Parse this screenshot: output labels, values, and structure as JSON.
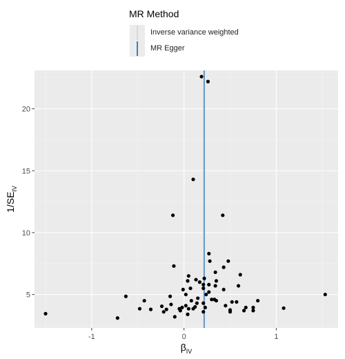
{
  "legend": {
    "title": "MR Method",
    "items": [
      {
        "label": "Inverse variance weighted",
        "color": "#c8dceb"
      },
      {
        "label": "MR Egger",
        "color": "#3d80bd"
      }
    ]
  },
  "chart_data": {
    "type": "scatter",
    "title": "",
    "xlabel": "β",
    "xlabel_sub": "IV",
    "ylabel": "1/SE",
    "ylabel_sub": "IV",
    "xlim": [
      -1.62,
      1.67
    ],
    "ylim": [
      2.3,
      23.1
    ],
    "x_ticks": [
      -1,
      0,
      1
    ],
    "x_tick_labels": [
      "-1",
      "0",
      "1"
    ],
    "y_ticks": [
      5,
      10,
      15,
      20
    ],
    "y_tick_labels": [
      "5",
      "10",
      "15",
      "20"
    ],
    "grid": true,
    "legend_position": "top",
    "vlines": [
      {
        "name": "Inverse variance weighted",
        "x": 0.21,
        "color": "#c8dceb"
      },
      {
        "name": "MR Egger",
        "x": 0.22,
        "color": "#3d80bd"
      }
    ],
    "points": [
      {
        "x": 0.19,
        "y": 22.6
      },
      {
        "x": 0.26,
        "y": 22.2
      },
      {
        "x": 0.1,
        "y": 14.3
      },
      {
        "x": -0.12,
        "y": 11.4
      },
      {
        "x": 0.42,
        "y": 11.4
      },
      {
        "x": 0.27,
        "y": 8.3
      },
      {
        "x": 0.28,
        "y": 7.7
      },
      {
        "x": 0.48,
        "y": 7.7
      },
      {
        "x": -0.11,
        "y": 7.3
      },
      {
        "x": 0.43,
        "y": 7.2
      },
      {
        "x": 0.34,
        "y": 6.8
      },
      {
        "x": 0.61,
        "y": 6.6
      },
      {
        "x": 0.05,
        "y": 6.5
      },
      {
        "x": 0.22,
        "y": 6.3
      },
      {
        "x": 0.13,
        "y": 6.2
      },
      {
        "x": 0.35,
        "y": 6.1
      },
      {
        "x": 0.04,
        "y": 6.1
      },
      {
        "x": 0.17,
        "y": 6.0
      },
      {
        "x": 0.21,
        "y": 5.8
      },
      {
        "x": 0.27,
        "y": 5.8
      },
      {
        "x": 0.34,
        "y": 5.7
      },
      {
        "x": 0.59,
        "y": 5.7
      },
      {
        "x": 0.07,
        "y": 5.5
      },
      {
        "x": 0.21,
        "y": 5.5
      },
      {
        "x": -0.01,
        "y": 5.4
      },
      {
        "x": 0.43,
        "y": 5.4
      },
      {
        "x": 0.27,
        "y": 5.2
      },
      {
        "x": 0.02,
        "y": 5.0
      },
      {
        "x": 0.24,
        "y": 5.0
      },
      {
        "x": 1.53,
        "y": 5.0
      },
      {
        "x": -0.63,
        "y": 4.85
      },
      {
        "x": -0.15,
        "y": 4.85
      },
      {
        "x": 0.15,
        "y": 4.7
      },
      {
        "x": 0.3,
        "y": 4.6
      },
      {
        "x": 0.33,
        "y": 4.6
      },
      {
        "x": 0.35,
        "y": 4.5
      },
      {
        "x": -0.43,
        "y": 4.5
      },
      {
        "x": 0.08,
        "y": 4.5
      },
      {
        "x": 0.52,
        "y": 4.4
      },
      {
        "x": 0.57,
        "y": 4.4
      },
      {
        "x": 0.8,
        "y": 4.5
      },
      {
        "x": 0.14,
        "y": 4.3
      },
      {
        "x": 0.21,
        "y": 4.3
      },
      {
        "x": -0.14,
        "y": 4.2
      },
      {
        "x": 0.45,
        "y": 4.1
      },
      {
        "x": -0.24,
        "y": 4.05
      },
      {
        "x": 0.02,
        "y": 4.1
      },
      {
        "x": 0.12,
        "y": 4.0
      },
      {
        "x": -0.02,
        "y": 3.95
      },
      {
        "x": 0.23,
        "y": 3.95
      },
      {
        "x": 0.67,
        "y": 3.95
      },
      {
        "x": 0.75,
        "y": 3.95
      },
      {
        "x": 1.08,
        "y": 3.9
      },
      {
        "x": -0.48,
        "y": 3.85
      },
      {
        "x": -0.05,
        "y": 3.85
      },
      {
        "x": 0.05,
        "y": 3.85
      },
      {
        "x": 0.1,
        "y": 3.85
      },
      {
        "x": -0.36,
        "y": 3.8
      },
      {
        "x": -0.19,
        "y": 3.8
      },
      {
        "x": 0.5,
        "y": 3.75
      },
      {
        "x": -0.04,
        "y": 3.7
      },
      {
        "x": 0.65,
        "y": 3.7
      },
      {
        "x": 0.75,
        "y": 3.7
      },
      {
        "x": -0.22,
        "y": 3.6
      },
      {
        "x": 0.21,
        "y": 3.6
      },
      {
        "x": 0.5,
        "y": 3.6
      },
      {
        "x": -1.5,
        "y": 3.45
      },
      {
        "x": 0.04,
        "y": 3.4
      },
      {
        "x": -0.1,
        "y": 3.2
      },
      {
        "x": -0.72,
        "y": 3.1
      }
    ]
  }
}
